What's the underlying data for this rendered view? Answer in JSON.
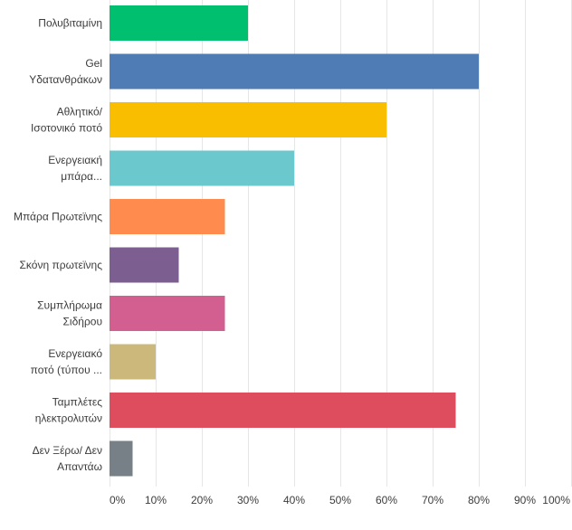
{
  "chart_data": {
    "type": "bar",
    "orientation": "horizontal",
    "title": "",
    "xlabel": "",
    "ylabel": "",
    "xlim": [
      0,
      100
    ],
    "grid": true,
    "legend": "none",
    "ticks": [
      "0%",
      "10%",
      "20%",
      "30%",
      "40%",
      "50%",
      "60%",
      "70%",
      "80%",
      "90%",
      "100%"
    ],
    "categories": [
      [
        "Πολυβιταμίνη"
      ],
      [
        "Gel",
        "Υδατανθράκων"
      ],
      [
        "Αθλητικό/",
        "Ισοτονικό ποτό"
      ],
      [
        "Ενεργειακή",
        "μπάρα..."
      ],
      [
        "Μπάρα Πρωτεϊνης"
      ],
      [
        "Σκόνη πρωτεϊνης"
      ],
      [
        "Συμπλήρωμα",
        "Σιδήρου"
      ],
      [
        "Ενεργειακό",
        "ποτό (τύπου ..."
      ],
      [
        "Ταμπλέτες",
        "ηλεκτρολυτών"
      ],
      [
        "Δεν Ξέρω/ Δεν",
        "Απαντάω"
      ]
    ],
    "values": [
      30,
      80,
      60,
      40,
      25,
      15,
      25,
      10,
      75,
      5
    ],
    "colors": [
      "#00bf6f",
      "#507cb6",
      "#f9be00",
      "#6bc8cd",
      "#ff8b4f",
      "#7d5e90",
      "#d25f90",
      "#cdb87c",
      "#de4d5d",
      "#768086"
    ]
  }
}
